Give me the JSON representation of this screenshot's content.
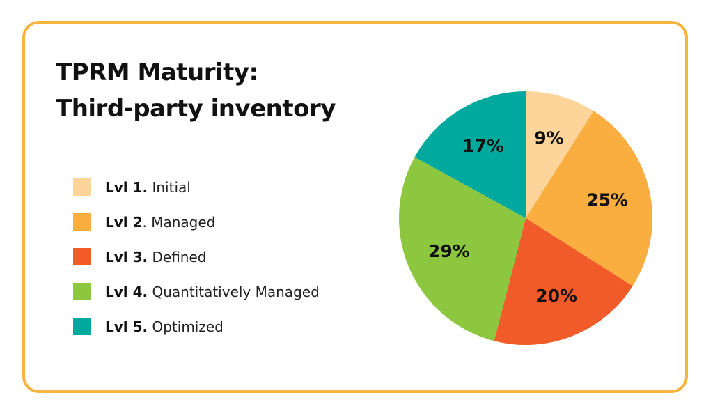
{
  "title": {
    "line1": "TPRM Maturity:",
    "line2": "Third-party inventory"
  },
  "legend": {
    "items": [
      {
        "level": "Lvl 1.",
        "sep": " ",
        "name": "Initial",
        "color": "#fdd59a"
      },
      {
        "level": "Lvl 2",
        "sep": ". ",
        "name": "Managed",
        "color": "#f9ae3f"
      },
      {
        "level": "Lvl 3.",
        "sep": " ",
        "name": "Defined",
        "color": "#f15a29"
      },
      {
        "level": "Lvl 4.",
        "sep": " ",
        "name": "Quantitatively Managed",
        "color": "#8dc63f"
      },
      {
        "level": "Lvl 5.",
        "sep": " ",
        "name": "Optimized",
        "color": "#00a99d"
      }
    ]
  },
  "chart_data": {
    "type": "pie",
    "start": "top",
    "direction": "clockwise",
    "slices": [
      {
        "label": "9%",
        "value": 9,
        "color": "#fdd59a"
      },
      {
        "label": "25%",
        "value": 25,
        "color": "#f9ae3f"
      },
      {
        "label": "20%",
        "value": 20,
        "color": "#f15a29"
      },
      {
        "label": "29%",
        "value": 29,
        "color": "#8dc63f"
      },
      {
        "label": "17%",
        "value": 17,
        "color": "#00a99d"
      }
    ]
  }
}
